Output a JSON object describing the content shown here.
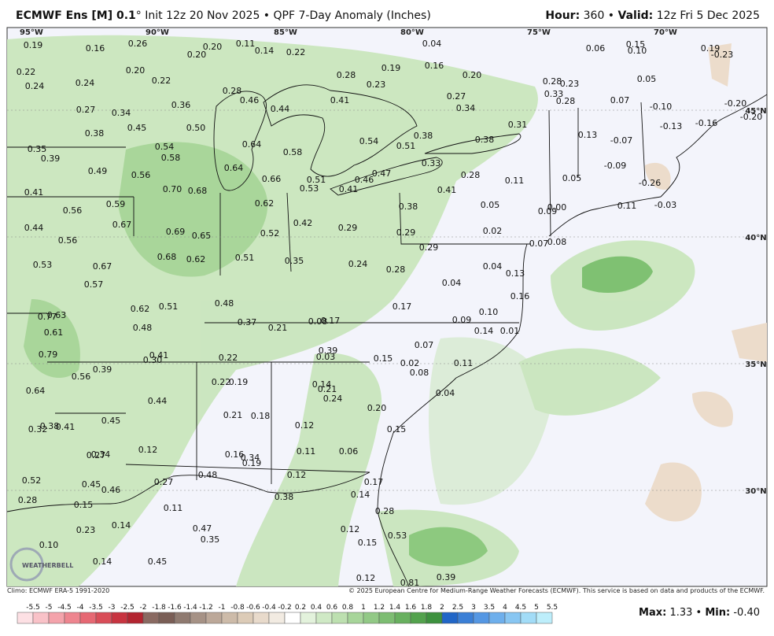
{
  "header": {
    "title_bold": "ECMWF Ens [M] 0.1",
    "title_rest": "° Init 12z 20 Nov 2025 • QPF 7-Day Anomaly (Inches)",
    "hour_label": "Hour:",
    "hour": " 360 • ",
    "valid_label": "Valid:",
    "valid": " 12z Fri 5 Dec 2025"
  },
  "map": {
    "lon_labels": [
      "95°W",
      "90°W",
      "85°W",
      "80°W",
      "75°W",
      "70°W"
    ],
    "lat_labels": [
      "45°N",
      "40°N",
      "35°N",
      "30°N"
    ],
    "logo": "WEATHERBELL",
    "values": [
      "0.19",
      "0.16",
      "0.26",
      "0.20",
      "0.20",
      "0.20",
      "0.11",
      "0.14",
      "0.22",
      "0.04",
      "0.16",
      "0.19",
      "0.28",
      "0.23",
      "0.20",
      "0.06",
      "0.15",
      "0.10",
      "0.19",
      "-0.23",
      "0.22",
      "0.24",
      "0.24",
      "0.22",
      "0.36",
      "0.28",
      "0.46",
      "0.44",
      "0.41",
      "0.27",
      "0.34",
      "0.28",
      "0.23",
      "0.33",
      "0.28",
      "0.07",
      "0.05",
      "-0.10",
      "-0.20",
      "-0.20",
      "-0.13",
      "-0.16",
      "0.27",
      "0.34",
      "0.38",
      "0.45",
      "0.50",
      "0.54",
      "0.58",
      "0.64",
      "0.58",
      "0.54",
      "0.51",
      "0.38",
      "0.31",
      "0.38",
      "0.13",
      "-0.07",
      "-0.09",
      "0.35",
      "0.39",
      "0.49",
      "0.56",
      "0.64",
      "0.66",
      "0.51",
      "0.33",
      "0.47",
      "0.46",
      "0.28",
      "0.11",
      "0.05",
      "-0.26",
      "0.41",
      "0.70",
      "0.68",
      "0.53",
      "0.41",
      "0.41",
      "0.56",
      "0.59",
      "0.62",
      "0.38",
      "0.05",
      "0.09",
      "0.00",
      "0.11",
      "-0.03",
      "0.44",
      "0.67",
      "0.69",
      "0.65",
      "0.52",
      "0.42",
      "0.29",
      "0.29",
      "0.02",
      "0.07",
      "0.08",
      "0.56",
      "0.29",
      "0.53",
      "0.67",
      "0.68",
      "0.62",
      "0.51",
      "0.35",
      "0.24",
      "0.28",
      "0.04",
      "0.13",
      "0.57",
      "0.04",
      "0.16",
      "0.48",
      "0.62",
      "0.51",
      "0.77",
      "0.63",
      "0.17",
      "0.10",
      "0.48",
      "0.37",
      "0.21",
      "0.08",
      "0.17",
      "0.09",
      "0.14",
      "0.01",
      "0.61",
      "0.07",
      "0.39",
      "0.79",
      "0.41",
      "0.30",
      "0.22",
      "0.03",
      "0.15",
      "0.02",
      "0.11",
      "0.08",
      "0.39",
      "0.56",
      "0.22",
      "0.19",
      "0.14",
      "0.21",
      "0.64",
      "0.24",
      "0.04",
      "0.44",
      "0.20",
      "0.21",
      "0.18",
      "0.45",
      "0.12",
      "0.38",
      "0.41",
      "0.32",
      "0.15",
      "0.12",
      "0.11",
      "0.06",
      "0.27",
      "0.34",
      "0.16",
      "0.34",
      "0.19",
      "0.52",
      "0.45",
      "0.46",
      "0.27",
      "0.48",
      "0.12",
      "0.17",
      "0.28",
      "0.15",
      "0.11",
      "0.38",
      "0.14",
      "0.28",
      "0.14",
      "0.23",
      "0.47",
      "0.35",
      "0.12",
      "0.53",
      "0.10",
      "0.15",
      "0.14",
      "0.45",
      "0.12",
      "0.81",
      "0.39"
    ]
  },
  "footer": {
    "climo": "Climo: ECMWF ERA-5 1991-2020",
    "copyright": "© 2025 European Centre for Medium-Range Weather Forecasts (ECMWF). This service is based on data and products of the ECMWF.",
    "colorbar_labels": [
      "-5.5",
      "-5",
      "-4.5",
      "-4",
      "-3.5",
      "-3",
      "-2.5",
      "-2",
      "-1.8",
      "-1.6",
      "-1.4",
      "-1.2",
      "-1",
      "-0.8",
      "-0.6",
      "-0.4",
      "-0.2",
      "0.2",
      "0.4",
      "0.6",
      "0.8",
      "1",
      "1.2",
      "1.4",
      "1.6",
      "1.8",
      "2",
      "2.5",
      "3",
      "3.5",
      "4",
      "4.5",
      "5",
      "5.5"
    ],
    "max_label": "Max:",
    "max": " 1.33 • ",
    "min_label": "Min:",
    "min": " -0.40"
  }
}
